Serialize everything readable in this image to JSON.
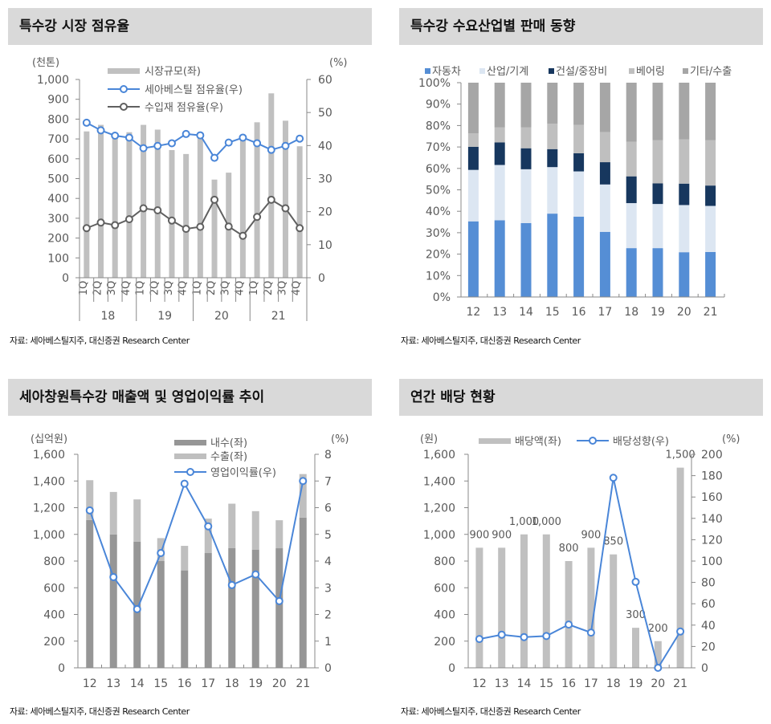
{
  "panels": [
    {
      "title": "특수강 시장 점유율",
      "source": "자료: 세아베스틸지주, 대신증권 Research Center"
    },
    {
      "title": "특수강 수요산업별 판매 동향",
      "source": "자료: 세아베스틸지주, 대신증권 Research Center"
    },
    {
      "title": "세아창원특수강 매출액 및 영업이익률 추이",
      "source": "자료: 세아베스틸지주, 대신증권 Research Center"
    },
    {
      "title": "연간 배당 현황",
      "source": "자료: 세아베스틸지주, 대신증권 Research Center"
    }
  ],
  "chart_data": [
    {
      "type": "bar+line",
      "title": "특수강 시장 점유율",
      "ylabel_left": "(천톤)",
      "ylabel_right": "(%)",
      "ylim_left": [
        0,
        1000
      ],
      "yticks_left": [
        "0",
        "100",
        "200",
        "300",
        "400",
        "500",
        "600",
        "700",
        "800",
        "900",
        "1,000"
      ],
      "ylim_right": [
        0,
        60
      ],
      "yticks_right": [
        "0",
        "10",
        "20",
        "30",
        "40",
        "50",
        "60"
      ],
      "quarters": [
        "1Q",
        "2Q",
        "3Q",
        "4Q",
        "1Q",
        "2Q",
        "3Q",
        "4Q",
        "1Q",
        "2Q",
        "3Q",
        "4Q",
        "1Q",
        "2Q",
        "3Q",
        "4Q"
      ],
      "years": [
        "18",
        "19",
        "20",
        "21"
      ],
      "legend_position": "top",
      "series": [
        {
          "name": "시장규모(좌)",
          "kind": "bar",
          "axis": "left",
          "color": "#c0c0c0",
          "values": [
            738,
            771,
            720,
            734,
            771,
            747,
            644,
            624,
            715,
            495,
            530,
            700,
            784,
            930,
            792,
            663
          ]
        },
        {
          "name": "세아베스틸 점유율(우)",
          "kind": "line",
          "axis": "right",
          "color": "#4a86d8",
          "values": [
            46.9,
            44.6,
            43.0,
            42.4,
            39.2,
            39.9,
            40.7,
            43.5,
            43.1,
            36.3,
            40.9,
            42.4,
            40.7,
            38.7,
            39.9,
            42.1
          ]
        },
        {
          "name": "수입재 점유율(우)",
          "kind": "line",
          "axis": "right",
          "color": "#606060",
          "values": [
            15.0,
            16.7,
            15.9,
            17.7,
            21.0,
            20.4,
            17.3,
            14.8,
            15.4,
            23.6,
            15.5,
            12.7,
            18.4,
            23.6,
            21.0,
            15.0
          ]
        }
      ]
    },
    {
      "type": "stacked-bar",
      "title": "특수강 수요산업별 판매 동향",
      "ylim": [
        0,
        100
      ],
      "yticks": [
        "0%",
        "10%",
        "20%",
        "30%",
        "40%",
        "50%",
        "60%",
        "70%",
        "80%",
        "90%",
        "100%"
      ],
      "categories": [
        "12",
        "13",
        "14",
        "15",
        "16",
        "17",
        "18",
        "19",
        "20",
        "21"
      ],
      "legend_position": "top",
      "series": [
        {
          "name": "자동차",
          "color": "#558ed5",
          "values": [
            35.3,
            35.8,
            34.5,
            38.9,
            37.5,
            30.4,
            22.8,
            22.8,
            20.9,
            21.0
          ]
        },
        {
          "name": "산업/기계",
          "color": "#dce6f2",
          "values": [
            24.0,
            25.8,
            25.1,
            21.7,
            21.1,
            22.1,
            21.0,
            20.6,
            22.0,
            21.5
          ]
        },
        {
          "name": "건설/중장비",
          "color": "#17375e",
          "values": [
            10.8,
            10.5,
            9.8,
            8.4,
            8.5,
            10.4,
            12.5,
            9.6,
            10.0,
            9.5
          ]
        },
        {
          "name": "베어링",
          "color": "#bfbfbf",
          "values": [
            6.2,
            7.0,
            9.7,
            11.8,
            13.2,
            14.0,
            16.1,
            20.1,
            20.6,
            21.1
          ]
        },
        {
          "name": "기타/수출",
          "color": "#a6a6a6",
          "values": [
            23.7,
            20.9,
            20.9,
            19.2,
            19.7,
            23.1,
            27.6,
            26.9,
            26.5,
            26.9
          ]
        }
      ]
    },
    {
      "type": "stacked-bar+line",
      "title": "세아창원특수강 매출액 및 영업이익률 추이",
      "ylabel_left": "(십억원)",
      "ylabel_right": "(%)",
      "ylim_left": [
        0,
        1600
      ],
      "yticks_left": [
        "0",
        "200",
        "400",
        "600",
        "800",
        "1,000",
        "1,200",
        "1,400",
        "1,600"
      ],
      "ylim_right": [
        0,
        8
      ],
      "yticks_right": [
        "0",
        "1",
        "2",
        "3",
        "4",
        "5",
        "6",
        "7",
        "8"
      ],
      "categories": [
        "12",
        "13",
        "14",
        "15",
        "16",
        "17",
        "18",
        "19",
        "20",
        "21"
      ],
      "legend_position": "top",
      "series": [
        {
          "name": "내수(좌)",
          "kind": "bar",
          "color": "#969696",
          "values": [
            1108,
            1000,
            946,
            800,
            730,
            860,
            898,
            886,
            896,
            1126
          ]
        },
        {
          "name": "수출(좌)",
          "kind": "bar",
          "color": "#bfbfbf",
          "values": [
            298,
            318,
            316,
            172,
            184,
            258,
            332,
            288,
            210,
            326
          ]
        },
        {
          "name": "영업이익률(우)",
          "kind": "line",
          "color": "#4a86d8",
          "values": [
            5.9,
            3.4,
            2.2,
            4.3,
            6.9,
            5.3,
            3.1,
            3.5,
            2.5,
            7.0
          ]
        }
      ]
    },
    {
      "type": "bar+line",
      "title": "연간 배당 현황",
      "ylabel_left": "(원)",
      "ylabel_right": "(%)",
      "ylim_left": [
        0,
        1600
      ],
      "yticks_left": [
        "0",
        "200",
        "400",
        "600",
        "800",
        "1,000",
        "1,200",
        "1,400",
        "1,600"
      ],
      "ylim_right": [
        0,
        200
      ],
      "yticks_right": [
        "0",
        "20",
        "40",
        "60",
        "80",
        "100",
        "120",
        "140",
        "160",
        "180",
        "200"
      ],
      "categories": [
        "12",
        "13",
        "14",
        "15",
        "16",
        "17",
        "18",
        "19",
        "20",
        "21"
      ],
      "legend_position": "top",
      "series": [
        {
          "name": "배당액(좌)",
          "kind": "bar",
          "color": "#c0c0c0",
          "values": [
            900,
            900,
            1000,
            1000,
            800,
            900,
            850,
            300,
            200,
            1500
          ],
          "labels": [
            "900",
            "900",
            "1,000",
            "1,000",
            "800",
            "900",
            "850",
            "300",
            "200",
            "1,500"
          ]
        },
        {
          "name": "배당성향(우)",
          "kind": "line",
          "color": "#4a86d8",
          "values": [
            27,
            31,
            28.8,
            29.8,
            40.5,
            33,
            178,
            80.5,
            0,
            34
          ]
        }
      ]
    }
  ]
}
